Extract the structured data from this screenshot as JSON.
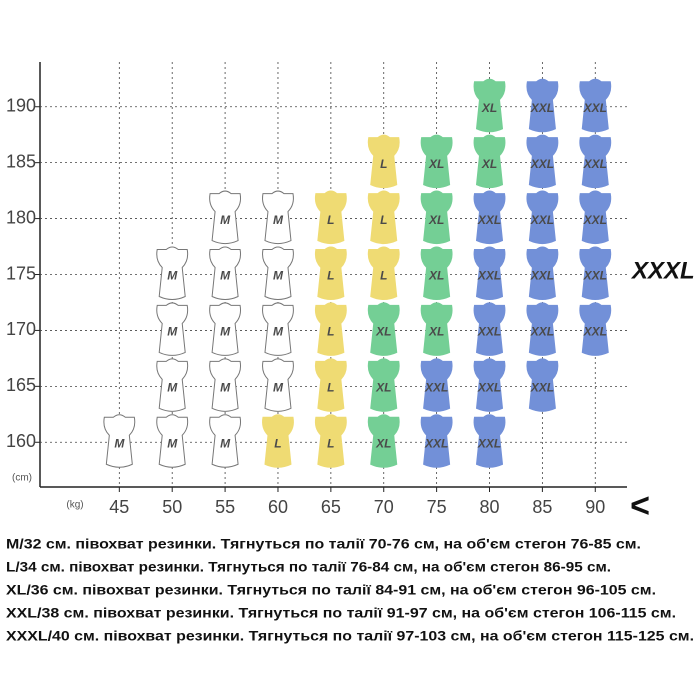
{
  "chart_data": {
    "type": "scatter",
    "y_unit": "(cm)",
    "x_unit": "(kg)",
    "xlim": [
      37.5,
      93
    ],
    "ylim": [
      156,
      194
    ],
    "xticks": [
      45,
      50,
      55,
      60,
      65,
      70,
      75,
      80,
      85,
      90
    ],
    "yticks": [
      160,
      165,
      170,
      175,
      180,
      185,
      190
    ],
    "grid": true,
    "series": [
      {
        "name": "M",
        "color": "#ffffff",
        "x": [
          45,
          50,
          50,
          50,
          50,
          55,
          55,
          55,
          55,
          55,
          60,
          60,
          60,
          60
        ],
        "values": [
          160,
          160,
          165,
          170,
          175,
          160,
          165,
          170,
          175,
          180,
          165,
          170,
          175,
          180
        ]
      },
      {
        "name": "L",
        "color": "#efdb73",
        "x": [
          60,
          65,
          65,
          65,
          65,
          65,
          70,
          70,
          70
        ],
        "values": [
          160,
          160,
          165,
          170,
          175,
          180,
          175,
          180,
          185
        ]
      },
      {
        "name": "XL",
        "color": "#74cf95",
        "x": [
          70,
          70,
          70,
          75,
          75,
          75,
          75,
          80,
          80
        ],
        "values": [
          160,
          165,
          170,
          170,
          175,
          180,
          185,
          185,
          190
        ]
      },
      {
        "name": "XXL",
        "color": "#7290d8",
        "x": [
          75,
          75,
          80,
          80,
          80,
          80,
          80,
          85,
          85,
          85,
          85,
          85,
          85,
          90,
          90,
          90,
          90,
          90
        ],
        "values": [
          160,
          165,
          160,
          165,
          170,
          175,
          180,
          165,
          170,
          175,
          180,
          185,
          190,
          170,
          175,
          180,
          185,
          190
        ]
      }
    ],
    "annotations": [
      "XXXL",
      "<"
    ],
    "notes": [
      "M/32 см. півохват резинки. Тягнуться по талії 70-76 см, на об'єм стегон 76-85 см.",
      "L/34 см. півохват резинки. Тягнуться по талії 76-84 см, на об'єм стегон 86-95 см.",
      "XL/36 см. півохват резинки. Тягнуться по талії 84-91 см, на об'єм стегон 96-105 см.",
      "XXL/38 см. півохват резинки. Тягнуться по талії 91-97 см, на об'єм стегон 106-115 см.",
      "XXXL/40 см. півохват резинки. Тягнуться по талії 97-103 см, на об'єм стегон 115-125 см."
    ]
  }
}
